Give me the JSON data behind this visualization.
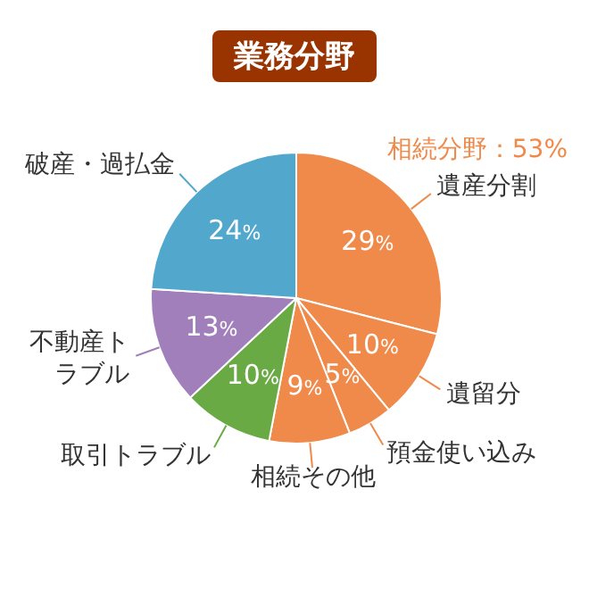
{
  "chart_data": {
    "type": "pie",
    "title": "業務分野",
    "categories": [
      "遺産分割",
      "遺留分",
      "預金使い込み",
      "相続その他",
      "取引トラブル",
      "不動産トラブル",
      "破産・過払金"
    ],
    "values": [
      29,
      10,
      5,
      9,
      10,
      13,
      24
    ],
    "colors": [
      "#f08a4b",
      "#f08a4b",
      "#f08a4b",
      "#f08a4b",
      "#6aaa45",
      "#a07fbb",
      "#52a7cd"
    ],
    "value_labels": [
      "29%",
      "10%",
      "5%",
      "9%",
      "10%",
      "13%",
      "24%"
    ],
    "annotations": [
      "相続分野：53%"
    ],
    "legend": false
  }
}
